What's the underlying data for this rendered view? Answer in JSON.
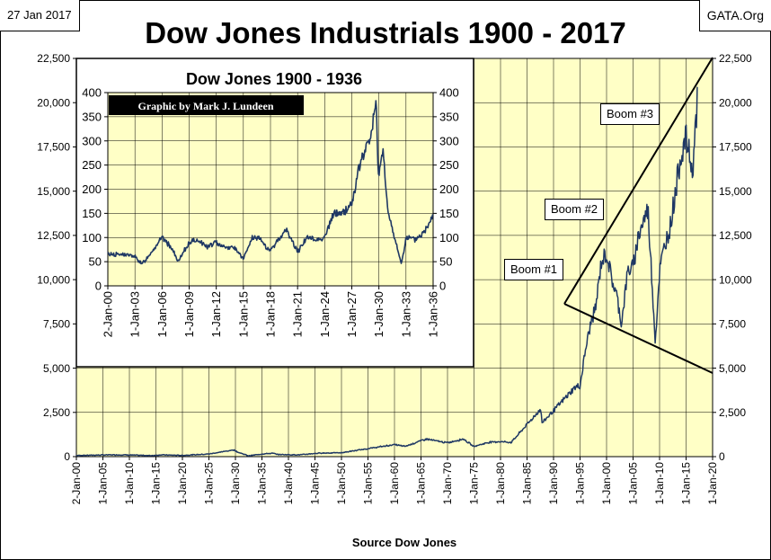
{
  "date_label": "27 Jan 2017",
  "source_site": "GATA.Org",
  "chart_data": [
    {
      "type": "line",
      "title": "Dow Jones Industrials 1900 - 2017",
      "xlabel": "Source Dow Jones",
      "ylabel": "",
      "ylim": [
        0,
        22500
      ],
      "y_ticks": [
        "0",
        "2,500",
        "5,000",
        "7,500",
        "10,000",
        "12,500",
        "15,000",
        "17,500",
        "20,000",
        "22,500"
      ],
      "x_ticks": [
        "2-Jan-00",
        "1-Jan-05",
        "1-Jan-10",
        "1-Jan-15",
        "1-Jan-20",
        "1-Jan-25",
        "1-Jan-30",
        "1-Jan-35",
        "1-Jan-40",
        "1-Jan-45",
        "1-Jan-50",
        "1-Jan-55",
        "1-Jan-60",
        "1-Jan-65",
        "1-Jan-70",
        "1-Jan-75",
        "1-Jan-80",
        "1-Jan-85",
        "1-Jan-90",
        "1-Jan-95",
        "1-Jan-00",
        "1-Jan-05",
        "1-Jan-10",
        "1-Jan-15",
        "1-Jan-20"
      ],
      "xlim_years": [
        1900,
        2020
      ],
      "series": [
        {
          "name": "Dow Jones Industrial Average",
          "x": [
            1900,
            1906,
            1909,
            1914,
            1916,
            1920,
            1925,
            1929.7,
            1930.5,
            1932.5,
            1935,
            1937,
            1938,
            1942,
            1946,
            1950,
            1955,
            1960,
            1962,
            1965,
            1966,
            1968,
            1970,
            1973,
            1974.9,
            1978,
            1980,
            1982,
            1987.6,
            1987.8,
            1990,
            1994,
            1995,
            1996,
            1997,
            1998,
            1999,
            2000,
            2001,
            2002,
            2002.8,
            2004,
            2005,
            2006,
            2007.8,
            2009.2,
            2010,
            2011,
            2012,
            2013,
            2014,
            2015,
            2016,
            2016.1,
            2017.1
          ],
          "y": [
            66,
            100,
            100,
            60,
            100,
            70,
            150,
            380,
            250,
            45,
            150,
            190,
            120,
            100,
            200,
            220,
            450,
            680,
            580,
            900,
            1000,
            880,
            780,
            1000,
            580,
            820,
            850,
            800,
            2700,
            1900,
            2600,
            3900,
            4000,
            6000,
            7500,
            8500,
            11000,
            11500,
            10000,
            9000,
            7500,
            10500,
            10700,
            12500,
            14000,
            6500,
            10500,
            12000,
            13000,
            15000,
            17000,
            18000,
            16500,
            15700,
            20000
          ]
        }
      ],
      "annotations": [
        "Boom #1",
        "Boom #2",
        "Boom #3"
      ]
    },
    {
      "type": "line",
      "title": "Dow Jones 1900 - 1936",
      "subtitle": "Graphic by Mark J. Lundeen",
      "ylim": [
        0,
        400
      ],
      "y_ticks": [
        "0",
        "50",
        "100",
        "150",
        "200",
        "250",
        "300",
        "350",
        "400"
      ],
      "x_ticks": [
        "2-Jan-00",
        "1-Jan-03",
        "1-Jan-06",
        "1-Jan-09",
        "1-Jan-12",
        "1-Jan-15",
        "1-Jan-18",
        "1-Jan-21",
        "1-Jan-24",
        "1-Jan-27",
        "1-Jan-30",
        "1-Jan-33",
        "1-Jan-36"
      ],
      "xlim_years": [
        1900,
        1936
      ],
      "series": [
        {
          "name": "Dow Jones Industrial Average",
          "x": [
            1900,
            1901,
            1902,
            1903,
            1903.8,
            1905,
            1906,
            1907,
            1907.8,
            1909,
            1910,
            1911,
            1912,
            1913,
            1914,
            1915,
            1916,
            1917,
            1917.9,
            1919,
            1919.8,
            1921,
            1922,
            1923,
            1924,
            1925,
            1926,
            1927,
            1928,
            1929,
            1929.7,
            1929.9,
            1930.5,
            1931,
            1932,
            1932.5,
            1933,
            1934,
            1935,
            1936
          ],
          "y": [
            66,
            65,
            65,
            60,
            45,
            75,
            100,
            80,
            50,
            90,
            95,
            80,
            90,
            80,
            80,
            55,
            100,
            95,
            70,
            100,
            115,
            70,
            100,
            95,
            100,
            150,
            150,
            170,
            260,
            300,
            380,
            230,
            280,
            150,
            80,
            45,
            100,
            95,
            110,
            150
          ]
        }
      ]
    }
  ]
}
